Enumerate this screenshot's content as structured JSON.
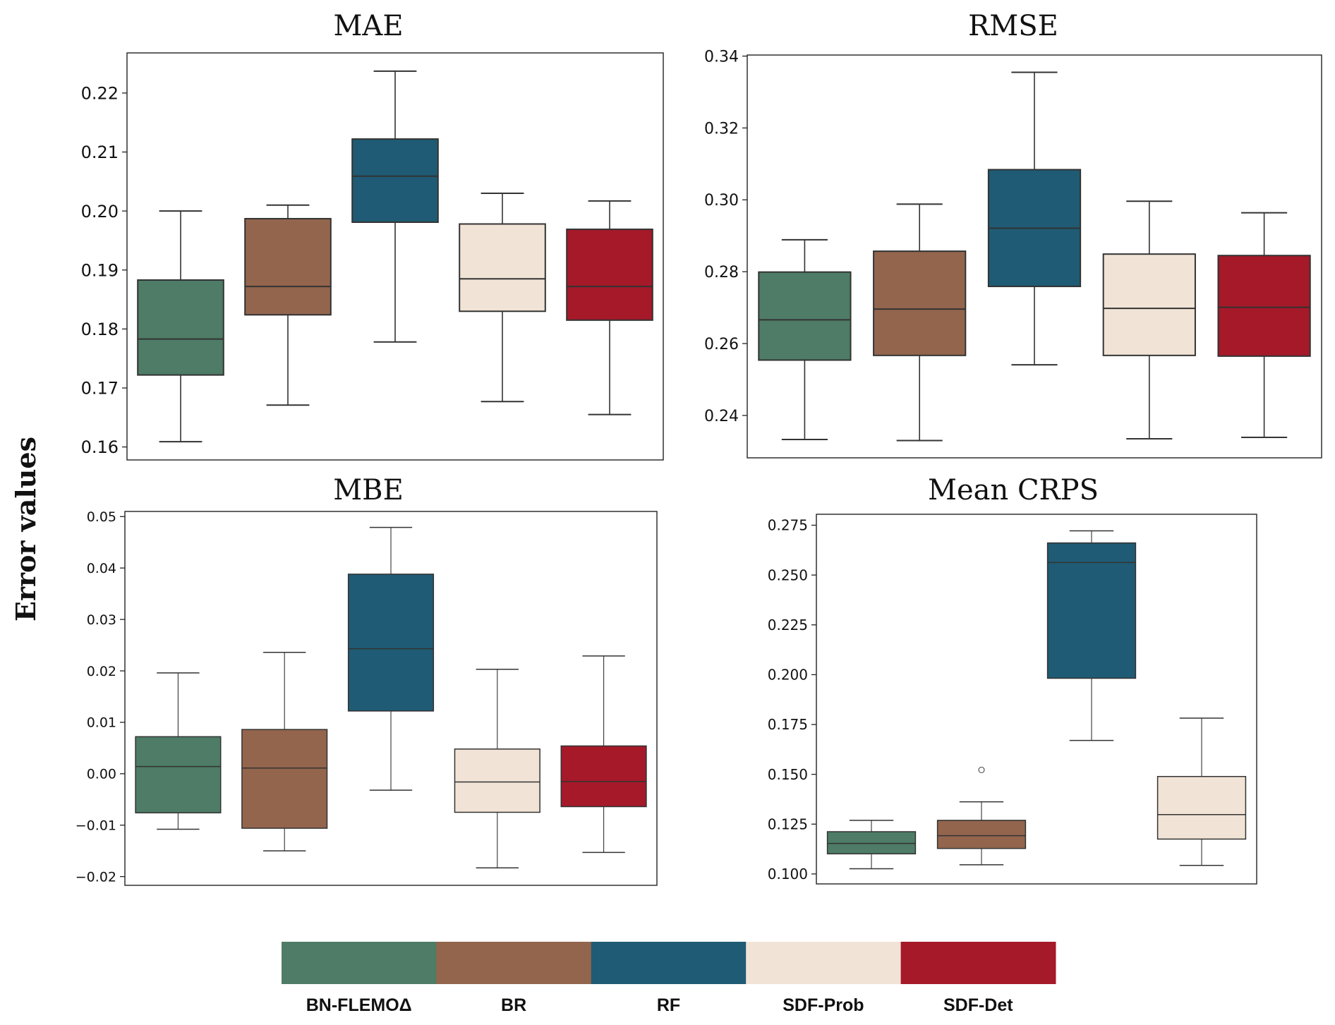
{
  "figure": {
    "ylabel": "Error values"
  },
  "legend": {
    "items": [
      {
        "label": "BN-FLEMOΔ",
        "color": "#4e7c66"
      },
      {
        "label": "BR",
        "color": "#93654d"
      },
      {
        "label": "RF",
        "color": "#1f5b74"
      },
      {
        "label": "SDF-Prob",
        "color": "#f1e4d7"
      },
      {
        "label": "SDF-Det",
        "color": "#a51929"
      }
    ]
  },
  "chart_data": [
    {
      "type": "box",
      "title": "MAE",
      "xlabel": "",
      "ylabel": "",
      "ylim": [
        0.1578,
        0.2268
      ],
      "yticks": [
        0.16,
        0.17,
        0.18,
        0.19,
        0.2,
        0.21,
        0.22
      ],
      "ytick_labels": [
        "0.16",
        "0.17",
        "0.18",
        "0.19",
        "0.20",
        "0.21",
        "0.22"
      ],
      "grid": false,
      "categories": [
        "BN-FLEMOΔ",
        "BR",
        "RF",
        "SDF-Prob",
        "SDF-Det"
      ],
      "boxes": [
        {
          "name": "BN-FLEMOΔ",
          "whisker_low": 0.1609,
          "q1": 0.1722,
          "median": 0.1783,
          "q3": 0.1883,
          "whisker_high": 0.2,
          "outliers": []
        },
        {
          "name": "BR",
          "whisker_low": 0.1671,
          "q1": 0.1824,
          "median": 0.1872,
          "q3": 0.1987,
          "whisker_high": 0.201,
          "outliers": []
        },
        {
          "name": "RF",
          "whisker_low": 0.1778,
          "q1": 0.1981,
          "median": 0.2059,
          "q3": 0.2122,
          "whisker_high": 0.2237,
          "outliers": []
        },
        {
          "name": "SDF-Prob",
          "whisker_low": 0.1677,
          "q1": 0.183,
          "median": 0.1885,
          "q3": 0.1978,
          "whisker_high": 0.203,
          "outliers": []
        },
        {
          "name": "SDF-Det",
          "whisker_low": 0.1655,
          "q1": 0.1815,
          "median": 0.1872,
          "q3": 0.1969,
          "whisker_high": 0.2017,
          "outliers": []
        }
      ]
    },
    {
      "type": "box",
      "title": "RMSE",
      "xlabel": "",
      "ylabel": "",
      "ylim": [
        0.2282,
        0.3403
      ],
      "yticks": [
        0.24,
        0.26,
        0.28,
        0.3,
        0.32,
        0.34
      ],
      "ytick_labels": [
        "0.24",
        "0.26",
        "0.28",
        "0.30",
        "0.32",
        "0.34"
      ],
      "grid": false,
      "categories": [
        "BN-FLEMOΔ",
        "BR",
        "RF",
        "SDF-Prob",
        "SDF-Det"
      ],
      "boxes": [
        {
          "name": "BN-FLEMOΔ",
          "whisker_low": 0.2333,
          "q1": 0.2554,
          "median": 0.2666,
          "q3": 0.2799,
          "whisker_high": 0.2889,
          "outliers": []
        },
        {
          "name": "BR",
          "whisker_low": 0.233,
          "q1": 0.2567,
          "median": 0.2696,
          "q3": 0.2857,
          "whisker_high": 0.2988,
          "outliers": []
        },
        {
          "name": "RF",
          "whisker_low": 0.2541,
          "q1": 0.2759,
          "median": 0.2921,
          "q3": 0.3084,
          "whisker_high": 0.3355,
          "outliers": []
        },
        {
          "name": "SDF-Prob",
          "whisker_low": 0.2335,
          "q1": 0.2567,
          "median": 0.2698,
          "q3": 0.2849,
          "whisker_high": 0.2996,
          "outliers": []
        },
        {
          "name": "SDF-Det",
          "whisker_low": 0.2339,
          "q1": 0.2565,
          "median": 0.2701,
          "q3": 0.2845,
          "whisker_high": 0.2964,
          "outliers": []
        }
      ]
    },
    {
      "type": "box",
      "title": "MBE",
      "xlabel": "",
      "ylabel": "",
      "ylim": [
        -0.0217,
        0.051
      ],
      "yticks": [
        -0.02,
        -0.01,
        0.0,
        0.01,
        0.02,
        0.03,
        0.04,
        0.05
      ],
      "ytick_labels": [
        "−0.02",
        "−0.01",
        "0.00",
        "0.01",
        "0.02",
        "0.03",
        "0.04",
        "0.05"
      ],
      "grid": false,
      "categories": [
        "BN-FLEMOΔ",
        "BR",
        "RF",
        "SDF-Prob",
        "SDF-Det"
      ],
      "boxes": [
        {
          "name": "BN-FLEMOΔ",
          "whisker_low": -0.0108,
          "q1": -0.0076,
          "median": 0.0014,
          "q3": 0.0072,
          "whisker_high": 0.0196,
          "outliers": []
        },
        {
          "name": "BR",
          "whisker_low": -0.015,
          "q1": -0.0106,
          "median": 0.0011,
          "q3": 0.0086,
          "whisker_high": 0.0236,
          "outliers": []
        },
        {
          "name": "RF",
          "whisker_low": -0.0032,
          "q1": 0.0122,
          "median": 0.0243,
          "q3": 0.0388,
          "whisker_high": 0.0479,
          "outliers": []
        },
        {
          "name": "SDF-Prob",
          "whisker_low": -0.0183,
          "q1": -0.0075,
          "median": -0.0016,
          "q3": 0.0048,
          "whisker_high": 0.0203,
          "outliers": []
        },
        {
          "name": "SDF-Det",
          "whisker_low": -0.0153,
          "q1": -0.0064,
          "median": -0.0015,
          "q3": 0.0054,
          "whisker_high": 0.0229,
          "outliers": []
        }
      ]
    },
    {
      "type": "box",
      "title": "Mean CRPS",
      "xlabel": "",
      "ylabel": "",
      "ylim": [
        0.095,
        0.2805
      ],
      "yticks": [
        0.1,
        0.125,
        0.15,
        0.175,
        0.2,
        0.225,
        0.25,
        0.275
      ],
      "ytick_labels": [
        "0.100",
        "0.125",
        "0.150",
        "0.175",
        "0.200",
        "0.225",
        "0.250",
        "0.275"
      ],
      "grid": false,
      "categories": [
        "BN-FLEMOΔ",
        "BR",
        "RF",
        "SDF-Prob"
      ],
      "boxes": [
        {
          "name": "BN-FLEMOΔ",
          "whisker_low": 0.1026,
          "q1": 0.1101,
          "median": 0.1153,
          "q3": 0.1212,
          "whisker_high": 0.1269,
          "outliers": []
        },
        {
          "name": "BR",
          "whisker_low": 0.1046,
          "q1": 0.1128,
          "median": 0.1192,
          "q3": 0.1269,
          "whisker_high": 0.1362,
          "outliers": [
            0.1522
          ]
        },
        {
          "name": "RF",
          "whisker_low": 0.167,
          "q1": 0.1982,
          "median": 0.2563,
          "q3": 0.2661,
          "whisker_high": 0.2722,
          "outliers": []
        },
        {
          "name": "SDF-Prob",
          "whisker_low": 0.1043,
          "q1": 0.1175,
          "median": 0.1298,
          "q3": 0.1489,
          "whisker_high": 0.1782,
          "outliers": []
        }
      ]
    }
  ]
}
